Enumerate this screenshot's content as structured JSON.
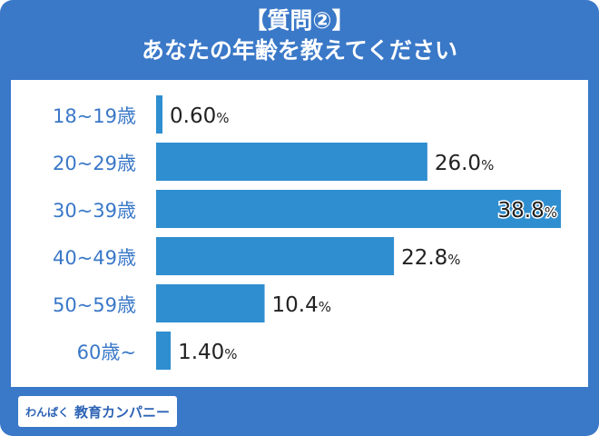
{
  "title": {
    "line1": "【質問②】",
    "line2": "あなたの年齢を教えてください"
  },
  "footer": {
    "brand_small": "わんぱく",
    "brand_main": "教育カンパニー"
  },
  "colors": {
    "background": "#3a78c8",
    "bar": "#2e8ed0",
    "category_text": "#3a78c8",
    "value_text": "#222222"
  },
  "chart_data": {
    "type": "bar",
    "orientation": "horizontal",
    "categories": [
      "18~19歳",
      "20~29歳",
      "30~39歳",
      "40~49歳",
      "50~59歳",
      "60歳~"
    ],
    "values": [
      0.6,
      26.0,
      38.8,
      22.8,
      10.4,
      1.4
    ],
    "value_labels": [
      "0.60",
      "26.0",
      "38.8",
      "22.8",
      "10.4",
      "1.40"
    ],
    "unit": "%",
    "xlim": [
      0,
      38.8
    ]
  }
}
